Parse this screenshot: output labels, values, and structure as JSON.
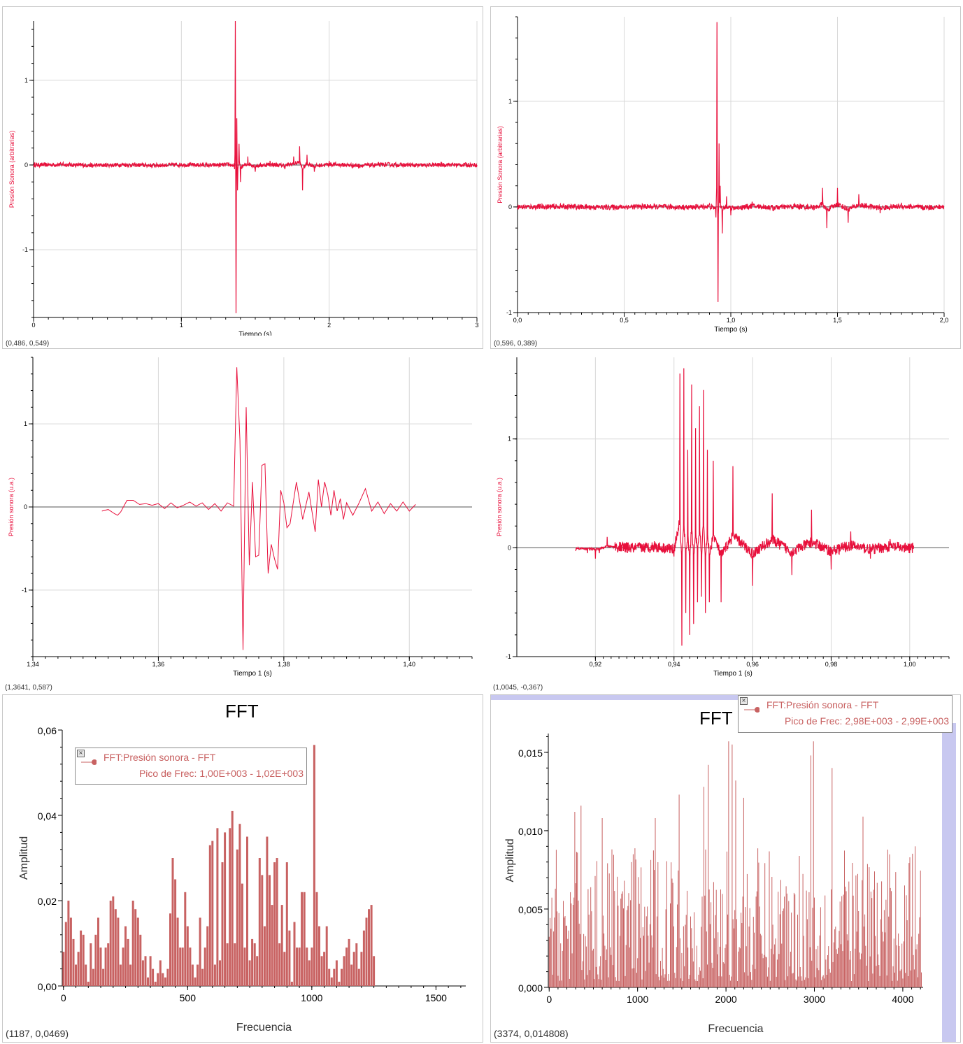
{
  "colors": {
    "signal": "#e8103c",
    "fft": "#c86262",
    "grid": "#d8d8d8",
    "axis": "#000000",
    "zero": "#555555",
    "strip": "#c8c8f0"
  },
  "chart_data": [
    {
      "id": "p1",
      "type": "line",
      "xlabel": "Tiempo (s)",
      "ylabel": "Presión Sonora (arbitrarias)",
      "xlim": [
        0,
        3
      ],
      "ylim": [
        -1.8,
        1.7
      ],
      "xticks": [
        0,
        1,
        2,
        3
      ],
      "xtick_labels": [
        "0",
        "1",
        "2",
        "3"
      ],
      "yticks": [
        -1,
        0,
        1
      ],
      "ytick_labels": [
        "-1",
        "0",
        "1"
      ],
      "grid": true,
      "readout": "(0,486, 0,549)",
      "series": [
        {
          "x": [
            0,
            0.2,
            0.4,
            0.6,
            0.8,
            1.0,
            1.2,
            1.32,
            1.36,
            1.365,
            1.37,
            1.375,
            1.38,
            1.39,
            1.4,
            1.45,
            1.5,
            1.6,
            1.7,
            1.76,
            1.8,
            1.82,
            1.85,
            1.9,
            2.0,
            2.2,
            2.4,
            2.6,
            2.8,
            3.0
          ],
          "y": [
            0.0,
            0.03,
            -0.03,
            0.02,
            -0.03,
            0.02,
            -0.02,
            0.03,
            -0.05,
            1.7,
            -1.75,
            0.55,
            -0.3,
            0.25,
            -0.2,
            0.1,
            -0.08,
            0.05,
            -0.05,
            0.1,
            0.22,
            -0.3,
            0.12,
            -0.08,
            0.05,
            -0.04,
            0.03,
            -0.03,
            0.02,
            0.0
          ],
          "noise": 0.025
        }
      ]
    },
    {
      "id": "p2",
      "type": "line",
      "xlabel": "Tiempo (s)",
      "ylabel": "Presión Sonora (arbitrarias)",
      "xlim": [
        0,
        2
      ],
      "ylim": [
        -1.0,
        1.8
      ],
      "xticks": [
        0,
        0.5,
        1.0,
        1.5,
        2.0
      ],
      "xtick_labels": [
        "0,0",
        "0,5",
        "1,0",
        "1,5",
        "2,0"
      ],
      "yticks": [
        -1,
        0,
        1
      ],
      "ytick_labels": [
        "-1",
        "0",
        "1"
      ],
      "grid": true,
      "readout": "(0,596, 0,389)",
      "series": [
        {
          "x": [
            0,
            0.2,
            0.4,
            0.6,
            0.8,
            0.9,
            0.93,
            0.935,
            0.94,
            0.945,
            0.95,
            0.96,
            0.98,
            1.0,
            1.1,
            1.2,
            1.3,
            1.4,
            1.43,
            1.45,
            1.5,
            1.55,
            1.6,
            1.7,
            1.8,
            1.9,
            2.0
          ],
          "y": [
            0.0,
            0.02,
            -0.02,
            0.02,
            -0.02,
            0.03,
            -0.1,
            1.75,
            -0.9,
            0.6,
            0.2,
            -0.25,
            0.1,
            -0.08,
            0.05,
            -0.04,
            0.03,
            -0.02,
            0.18,
            -0.2,
            0.18,
            -0.15,
            0.12,
            -0.06,
            0.04,
            -0.03,
            0.0
          ],
          "noise": 0.025
        }
      ]
    },
    {
      "id": "p3",
      "type": "line",
      "xlabel": "Tiempo 1 (s)",
      "ylabel": "Presión sonora (u.a.)",
      "xlim": [
        1.34,
        1.41
      ],
      "ylim": [
        -1.8,
        1.8
      ],
      "xticks": [
        1.34,
        1.36,
        1.38,
        1.4
      ],
      "xtick_labels": [
        "1,34",
        "1,36",
        "1,38",
        "1,40"
      ],
      "yticks": [
        -1,
        0,
        1
      ],
      "ytick_labels": [
        "-1",
        "0",
        "1"
      ],
      "grid": true,
      "readout": "(1,3641, 0,587)",
      "series": [
        {
          "x": [
            1.351,
            1.352,
            1.353,
            1.3535,
            1.354,
            1.355,
            1.356,
            1.357,
            1.358,
            1.359,
            1.36,
            1.361,
            1.362,
            1.363,
            1.364,
            1.365,
            1.366,
            1.367,
            1.368,
            1.369,
            1.37,
            1.371,
            1.372,
            1.3725,
            1.373,
            1.3735,
            1.374,
            1.3745,
            1.375,
            1.3755,
            1.376,
            1.3765,
            1.377,
            1.3775,
            1.378,
            1.3785,
            1.379,
            1.3795,
            1.38,
            1.3805,
            1.381,
            1.382,
            1.383,
            1.384,
            1.385,
            1.3855,
            1.386,
            1.3865,
            1.387,
            1.3875,
            1.388,
            1.3885,
            1.389,
            1.3895,
            1.39,
            1.391,
            1.392,
            1.393,
            1.394,
            1.395,
            1.396,
            1.397,
            1.398,
            1.399,
            1.4,
            1.401
          ],
          "y": [
            -0.05,
            -0.03,
            -0.08,
            -0.1,
            -0.06,
            0.08,
            0.08,
            0.03,
            0.04,
            0.02,
            0.04,
            -0.02,
            0.05,
            -0.01,
            0.02,
            0.06,
            0.01,
            0.05,
            -0.03,
            0.04,
            -0.05,
            0.05,
            0.01,
            1.68,
            0.8,
            -1.72,
            1.2,
            -0.7,
            0.3,
            -0.6,
            -0.58,
            0.5,
            0.52,
            -0.8,
            -0.45,
            -0.62,
            -0.75,
            0.2,
            0.05,
            -0.25,
            -0.2,
            0.3,
            -0.15,
            0.18,
            -0.3,
            0.33,
            0.0,
            0.3,
            0.15,
            -0.1,
            0.2,
            -0.05,
            0.1,
            -0.15,
            0.05,
            -0.1,
            0.05,
            0.22,
            -0.05,
            0.06,
            -0.08,
            0.04,
            -0.05,
            0.06,
            -0.05,
            0.03
          ]
        }
      ]
    },
    {
      "id": "p4",
      "type": "line",
      "xlabel": "Tiempo 1 (s)",
      "ylabel": "Presión sonora (u.a.)",
      "xlim": [
        0.9,
        1.01
      ],
      "ylim": [
        -1.0,
        1.75
      ],
      "xticks": [
        0.92,
        0.94,
        0.96,
        0.98,
        1.0
      ],
      "xtick_labels": [
        "0,92",
        "0,94",
        "0,96",
        "0,98",
        "1,00"
      ],
      "yticks": [
        -1,
        0,
        1
      ],
      "ytick_labels": [
        "-1",
        "0",
        "1"
      ],
      "grid": true,
      "readout": "(1,0045, -0,367)",
      "series": [
        {
          "x": [
            0.915,
            0.918,
            0.92,
            0.921,
            0.922,
            0.923,
            0.925,
            0.93,
            0.935,
            0.94,
            0.9415,
            0.942,
            0.9425,
            0.943,
            0.9435,
            0.944,
            0.9445,
            0.945,
            0.9455,
            0.946,
            0.9465,
            0.947,
            0.9475,
            0.948,
            0.9485,
            0.949,
            0.95,
            0.952,
            0.955,
            0.96,
            0.965,
            0.97,
            0.975,
            0.98,
            0.985,
            0.99,
            0.995,
            1.0,
            1.001
          ],
          "y": [
            -0.03,
            -0.05,
            -0.1,
            -0.05,
            0.0,
            0.1,
            0.05,
            -0.02,
            0.06,
            -0.08,
            1.6,
            -0.9,
            1.65,
            -0.6,
            0.9,
            -0.8,
            1.5,
            -0.7,
            1.1,
            -0.5,
            1.3,
            -0.45,
            1.45,
            -0.6,
            0.9,
            -0.5,
            0.8,
            -0.5,
            0.75,
            -0.35,
            0.5,
            -0.25,
            0.35,
            -0.2,
            0.15,
            -0.1,
            0.08,
            -0.05,
            0.02
          ],
          "noise": 0.05,
          "noise_start": 0.925
        }
      ]
    },
    {
      "id": "p5",
      "type": "bar",
      "title": "FFT",
      "xlabel": "Frecuencia",
      "ylabel": "Amplitud",
      "xlim": [
        -5,
        1620
      ],
      "ylim": [
        0,
        0.06
      ],
      "xticks": [
        0,
        500,
        1000,
        1500
      ],
      "xtick_labels": [
        "0",
        "500",
        "1000",
        "1500"
      ],
      "yticks": [
        0,
        0.02,
        0.04,
        0.06
      ],
      "ytick_labels": [
        "0,00",
        "0,02",
        "0,04",
        "0,06"
      ],
      "grid": false,
      "readout": "(1187, 0,0469)",
      "legend": {
        "series": "FFT:Presión sonora - FFT",
        "peak": "Pico de Frec: 1,00E+003 - 1,02E+003",
        "close": "×"
      },
      "bar_step": 10,
      "values": [
        0.008,
        0.015,
        0.02,
        0.016,
        0.011,
        0.005,
        0.008,
        0.013,
        0.012,
        0.005,
        0.001,
        0.01,
        0.004,
        0.012,
        0.016,
        0.009,
        0.004,
        0.009,
        0.01,
        0.02,
        0.021,
        0.018,
        0.016,
        0.005,
        0.009,
        0.014,
        0.011,
        0.005,
        0.02,
        0.018,
        0.016,
        0.012,
        0.006,
        0.007,
        0.002,
        0.007,
        0.004,
        0.001,
        0.003,
        0.006,
        0.003,
        0.002,
        0.004,
        0.017,
        0.03,
        0.025,
        0.016,
        0.009,
        0.009,
        0.022,
        0.014,
        0.009,
        0.005,
        0.002,
        0.005,
        0.016,
        0.004,
        0.009,
        0.014,
        0.033,
        0.034,
        0.005,
        0.037,
        0.006,
        0.029,
        0.036,
        0.01,
        0.037,
        0.041,
        0.01,
        0.032,
        0.038,
        0.024,
        0.009,
        0.035,
        0.006,
        0.011,
        0.01,
        0.007,
        0.03,
        0.026,
        0.014,
        0.035,
        0.026,
        0.019,
        0.029,
        0.03,
        0.01,
        0.019,
        0.008,
        0.029,
        0.013,
        0.001,
        0.015,
        0.009,
        0.009,
        0.022,
        0.022,
        0.009,
        0.006,
        0.009,
        0.008,
        0.022,
        0.014,
        0.007,
        0.008,
        0.014,
        0.004,
        0.002,
        0.004,
        0.006,
        0.001,
        0.004,
        0.007,
        0.009,
        0.011,
        0.005,
        0.008,
        0.01,
        0.004,
        0.008,
        0.013,
        0.016,
        0.018,
        0.019,
        0.007
      ],
      "peak_bar": {
        "x": 1010,
        "value": 0.0565
      }
    },
    {
      "id": "p6",
      "type": "bar",
      "title": "FFT",
      "xlabel": "Frecuencia",
      "ylabel": "Amplitud",
      "xlim": [
        -10,
        4230
      ],
      "ylim": [
        0,
        0.0162
      ],
      "xticks": [
        0,
        1000,
        2000,
        3000,
        4000
      ],
      "xtick_labels": [
        "0",
        "1000",
        "2000",
        "3000",
        "4000"
      ],
      "yticks": [
        0,
        0.005,
        0.01,
        0.015
      ],
      "ytick_labels": [
        "0,000",
        "0,005",
        "0,010",
        "0,015"
      ],
      "grid": false,
      "readout": "(3374, 0,014808)",
      "legend": {
        "series": "FFT:Presión sonora - FFT",
        "peak": "Pico de Frec: 2,98E+003 - 2,99E+003",
        "close": "×"
      },
      "bar_step": 10,
      "peaks": [
        [
          290,
          0.0112
        ],
        [
          360,
          0.0116
        ],
        [
          600,
          0.0108
        ],
        [
          1200,
          0.0108
        ],
        [
          1470,
          0.0123
        ],
        [
          1750,
          0.0128
        ],
        [
          1800,
          0.0142
        ],
        [
          2030,
          0.0157
        ],
        [
          2070,
          0.0155
        ],
        [
          2110,
          0.0132
        ],
        [
          2200,
          0.0121
        ],
        [
          2960,
          0.0148
        ],
        [
          2990,
          0.0157
        ],
        [
          3200,
          0.014
        ],
        [
          3550,
          0.0109
        ],
        [
          4080,
          0.0083
        ],
        [
          4140,
          0.009
        ]
      ],
      "envelope": 0.0085,
      "floor": 0.0004
    }
  ]
}
